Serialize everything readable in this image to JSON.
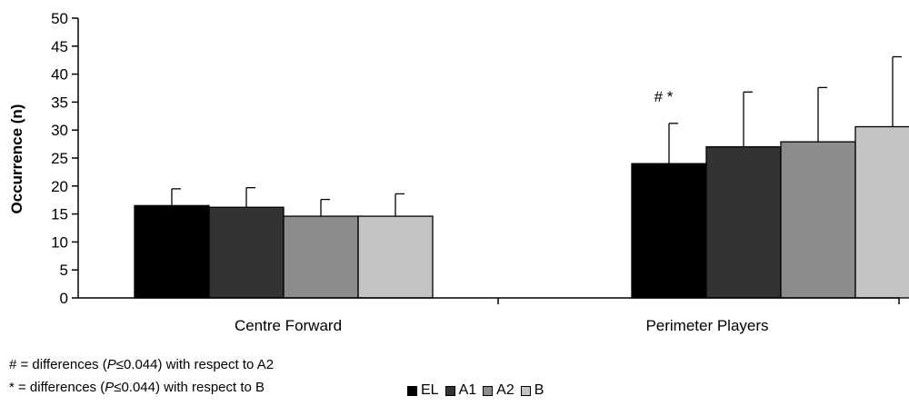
{
  "chart_data": {
    "type": "bar",
    "ylabel": "Occurrence (n)",
    "ylim": [
      0,
      50
    ],
    "yticks": [
      "0",
      "5",
      "10",
      "15",
      "20",
      "25",
      "30",
      "35",
      "40",
      "45",
      "50"
    ],
    "categories": [
      "Centre Forward",
      "Perimeter Players"
    ],
    "series": [
      {
        "name": "EL",
        "color": "#000000",
        "values": [
          16.5,
          24.0
        ],
        "error": [
          3.0,
          7.2
        ]
      },
      {
        "name": "A1",
        "color": "#333333",
        "values": [
          16.2,
          27.0
        ],
        "error": [
          3.5,
          9.8
        ]
      },
      {
        "name": "A2",
        "color": "#8c8c8c",
        "values": [
          14.6,
          27.9
        ],
        "error": [
          3.0,
          9.7
        ]
      },
      {
        "name": "B",
        "color": "#c4c4c4",
        "values": [
          14.6,
          30.6
        ],
        "error": [
          4.0,
          12.5
        ]
      }
    ],
    "annotations": [
      {
        "text": "# *",
        "category": "Perimeter Players",
        "series": "EL"
      }
    ],
    "legend_position": "bottom",
    "grid": false
  },
  "footnotes": {
    "line1_prefix": "# = differences (",
    "line1_p": "P",
    "line1_rest": "≤0.044) with respect to A2",
    "line2_prefix": "* = differences (",
    "line2_p": "P",
    "line2_rest": "≤0.044) with respect to B"
  }
}
